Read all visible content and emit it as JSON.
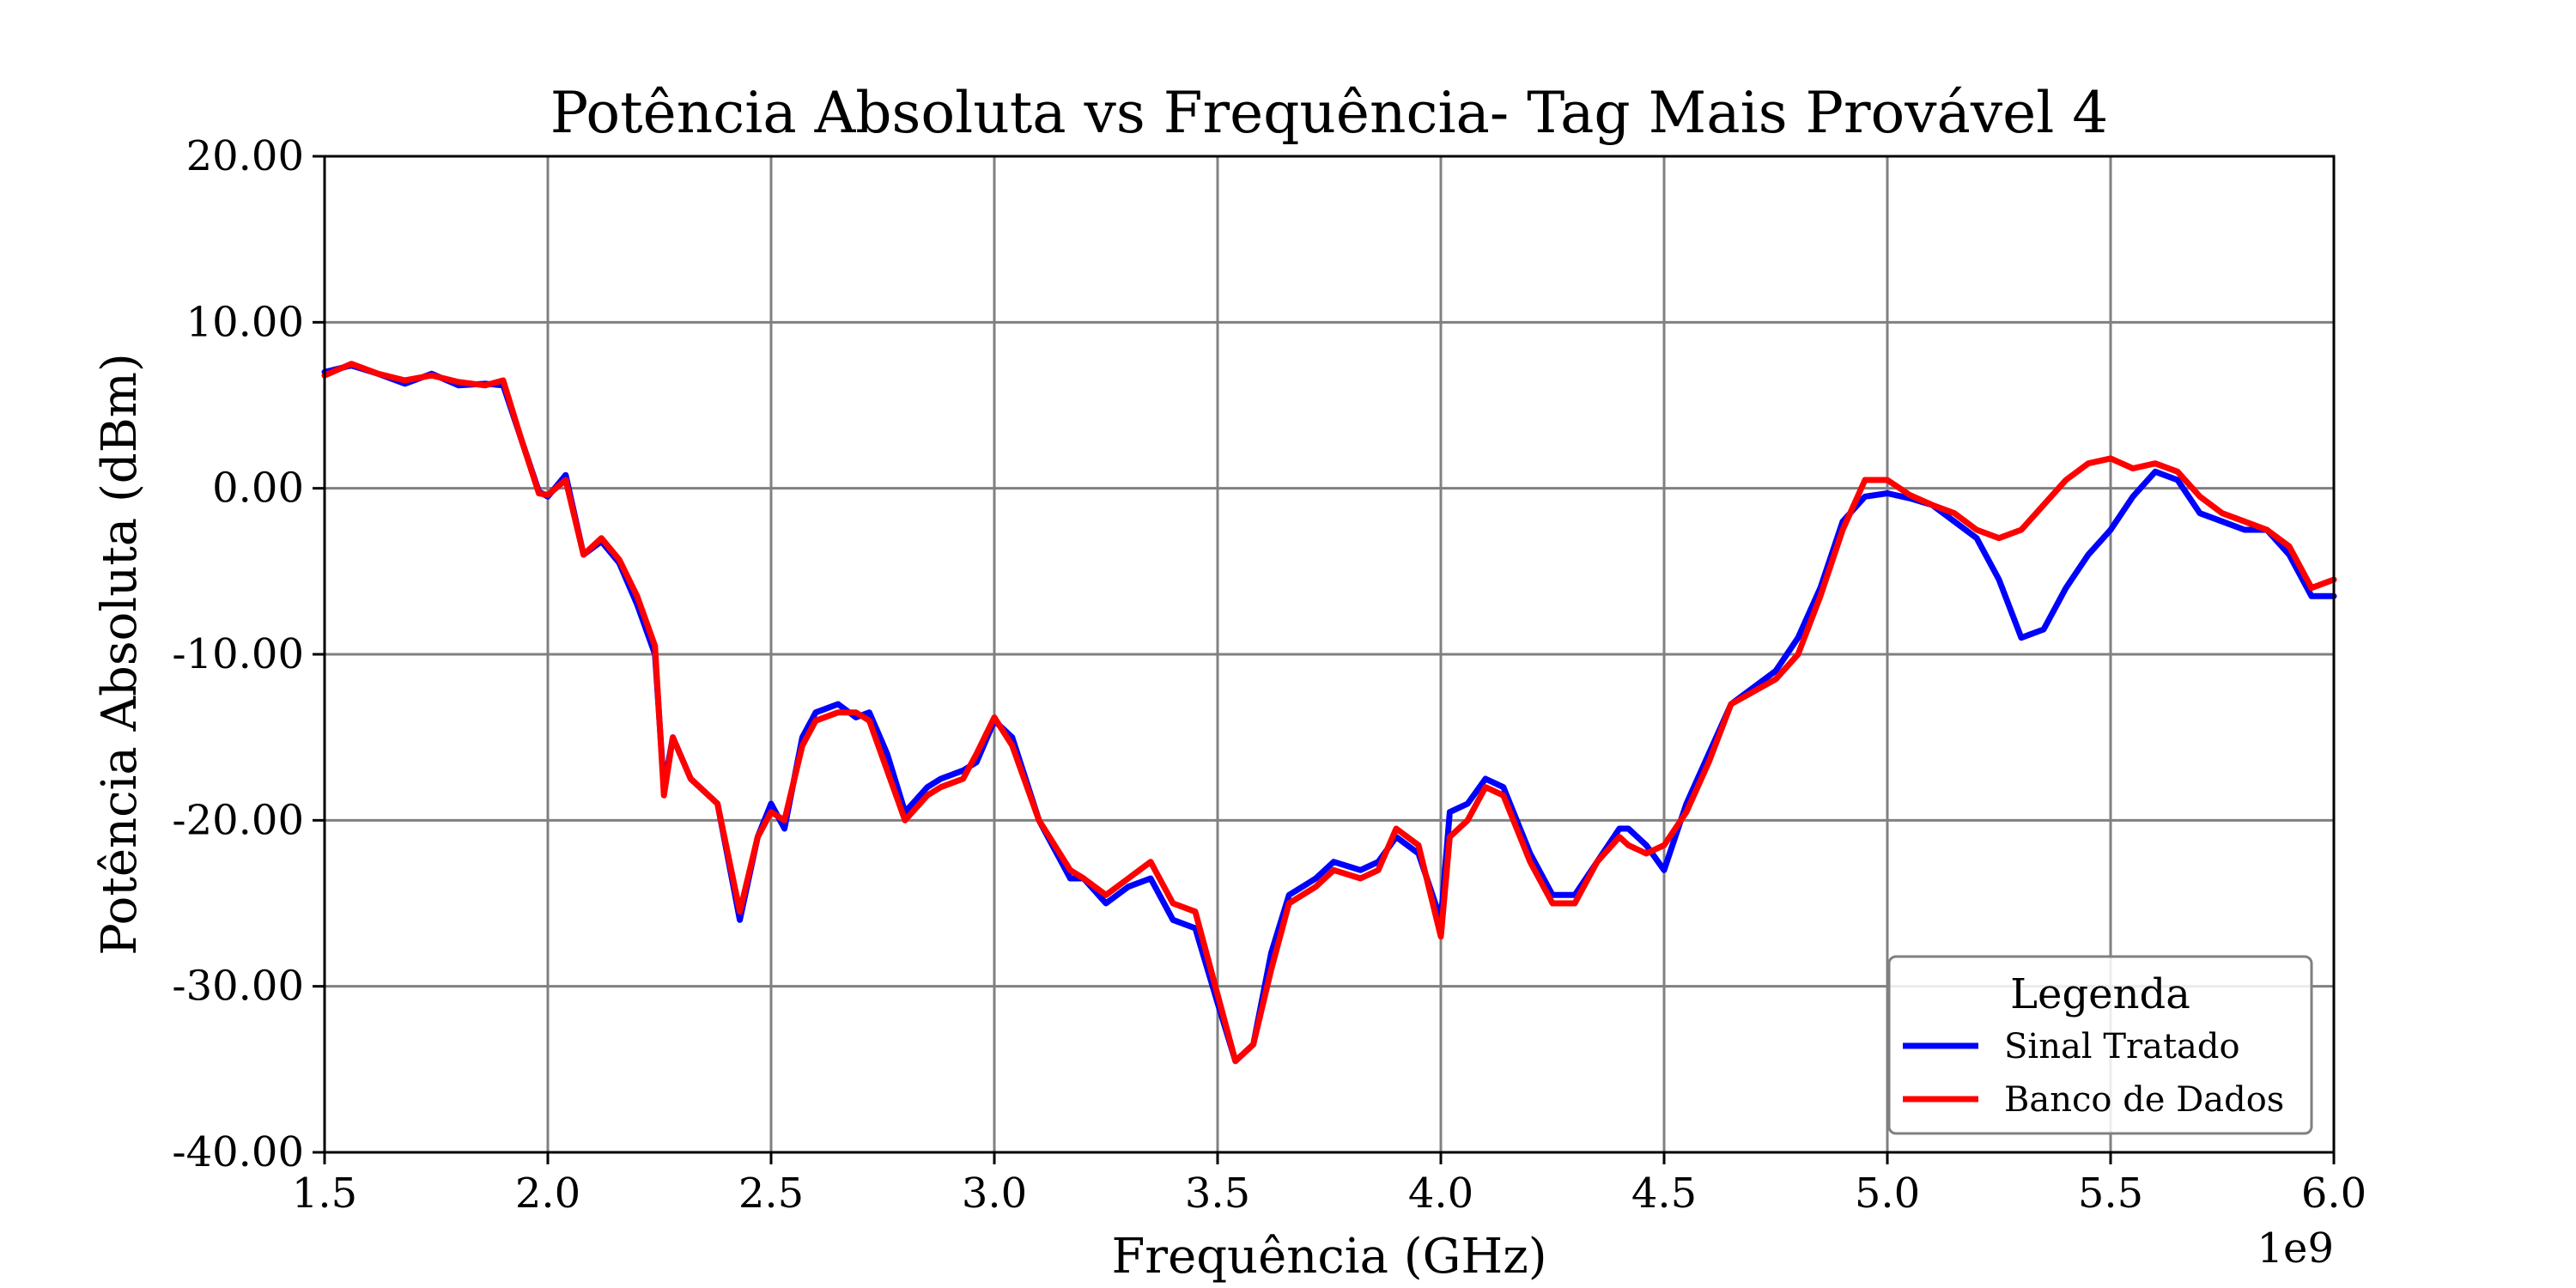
{
  "chart_data": {
    "type": "line",
    "title": "Potência Absoluta vs Frequência- Tag Mais Provável 4",
    "xlabel": "Frequência (GHz)",
    "ylabel": "Potência Absoluta (dBm)",
    "x_offset_text": "1e9",
    "xlim": [
      1.5,
      6.0
    ],
    "ylim": [
      -40,
      20
    ],
    "x_ticks": [
      1.5,
      2.0,
      2.5,
      3.0,
      3.5,
      4.0,
      4.5,
      5.0,
      5.5,
      6.0
    ],
    "x_tick_labels": [
      "1.5",
      "2.0",
      "2.5",
      "3.0",
      "3.5",
      "4.0",
      "4.5",
      "5.0",
      "5.5",
      "6.0"
    ],
    "y_ticks": [
      20,
      10,
      0,
      -10,
      -20,
      -30,
      -40
    ],
    "y_tick_labels": [
      "20.00",
      "10.00",
      "0.00",
      "-10.00",
      "-20.00",
      "-30.00",
      "-40.00"
    ],
    "grid": true,
    "legend": {
      "title": "Legenda",
      "placement": "lower-right"
    },
    "colors": {
      "series_0": "#0000ff",
      "series_1": "#ff0000"
    },
    "series": [
      {
        "name": "Sinal Tratado",
        "x": [
          1.5,
          1.56,
          1.62,
          1.68,
          1.74,
          1.8,
          1.86,
          1.9,
          1.94,
          1.98,
          2.0,
          2.04,
          2.08,
          2.12,
          2.16,
          2.2,
          2.24,
          2.26,
          2.28,
          2.32,
          2.36,
          2.38,
          2.43,
          2.47,
          2.5,
          2.53,
          2.57,
          2.6,
          2.65,
          2.69,
          2.72,
          2.76,
          2.8,
          2.85,
          2.88,
          2.93,
          2.96,
          3.0,
          3.04,
          3.1,
          3.17,
          3.2,
          3.25,
          3.3,
          3.35,
          3.4,
          3.45,
          3.5,
          3.54,
          3.58,
          3.62,
          3.66,
          3.72,
          3.76,
          3.82,
          3.86,
          3.9,
          3.95,
          4.0,
          4.02,
          4.06,
          4.1,
          4.14,
          4.2,
          4.25,
          4.3,
          4.35,
          4.4,
          4.42,
          4.46,
          4.5,
          4.55,
          4.6,
          4.65,
          4.75,
          4.8,
          4.85,
          4.9,
          4.95,
          5.0,
          5.05,
          5.1,
          5.15,
          5.2,
          5.25,
          5.3,
          5.35,
          5.4,
          5.45,
          5.5,
          5.55,
          5.6,
          5.65,
          5.7,
          5.75,
          5.8,
          5.85,
          5.9,
          5.95,
          6.0
        ],
        "values": [
          7.0,
          7.4,
          6.9,
          6.3,
          6.9,
          6.2,
          6.3,
          6.2,
          3.0,
          -0.2,
          -0.5,
          0.8,
          -4.0,
          -3.2,
          -4.5,
          -7.0,
          -10.0,
          -18.0,
          -15.0,
          -17.5,
          -18.5,
          -19.0,
          -26.0,
          -21.0,
          -19.0,
          -20.5,
          -15.0,
          -13.5,
          -13.0,
          -13.8,
          -13.5,
          -16.0,
          -19.5,
          -18.0,
          -17.5,
          -17.0,
          -16.5,
          -14.0,
          -15.0,
          -20.0,
          -23.5,
          -23.5,
          -25.0,
          -24.0,
          -23.5,
          -26.0,
          -26.5,
          -31.0,
          -34.5,
          -33.5,
          -28.0,
          -24.5,
          -23.5,
          -22.5,
          -23.0,
          -22.5,
          -21.0,
          -22.0,
          -26.0,
          -19.5,
          -19.0,
          -17.5,
          -18.0,
          -22.0,
          -24.5,
          -24.5,
          -22.5,
          -20.5,
          -20.5,
          -21.5,
          -23.0,
          -19.0,
          -16.0,
          -13.0,
          -11.0,
          -9.0,
          -6.0,
          -2.0,
          -0.5,
          -0.3,
          -0.6,
          -1.0,
          -2.0,
          -3.0,
          -5.5,
          -9.0,
          -8.5,
          -6.0,
          -4.0,
          -2.5,
          -0.5,
          1.0,
          0.5,
          -1.5,
          -2.0,
          -2.5,
          -2.5,
          -4.0,
          -6.5,
          -6.5
        ]
      },
      {
        "name": "Banco de Dados",
        "x": [
          1.5,
          1.56,
          1.62,
          1.68,
          1.74,
          1.8,
          1.86,
          1.9,
          1.94,
          1.98,
          2.0,
          2.04,
          2.08,
          2.12,
          2.16,
          2.2,
          2.24,
          2.26,
          2.28,
          2.32,
          2.36,
          2.38,
          2.43,
          2.47,
          2.5,
          2.53,
          2.57,
          2.6,
          2.65,
          2.69,
          2.72,
          2.76,
          2.8,
          2.85,
          2.88,
          2.93,
          2.96,
          3.0,
          3.04,
          3.1,
          3.17,
          3.2,
          3.25,
          3.3,
          3.35,
          3.4,
          3.45,
          3.5,
          3.54,
          3.58,
          3.62,
          3.66,
          3.72,
          3.76,
          3.82,
          3.86,
          3.9,
          3.95,
          4.0,
          4.02,
          4.06,
          4.1,
          4.14,
          4.2,
          4.25,
          4.3,
          4.35,
          4.4,
          4.42,
          4.46,
          4.5,
          4.55,
          4.6,
          4.65,
          4.75,
          4.8,
          4.85,
          4.9,
          4.95,
          5.0,
          5.05,
          5.1,
          5.15,
          5.2,
          5.25,
          5.3,
          5.35,
          5.4,
          5.45,
          5.5,
          5.55,
          5.6,
          5.65,
          5.7,
          5.75,
          5.8,
          5.85,
          5.9,
          5.95,
          6.0
        ],
        "values": [
          6.8,
          7.5,
          6.9,
          6.5,
          6.8,
          6.4,
          6.2,
          6.5,
          3.0,
          -0.3,
          -0.4,
          0.5,
          -4.0,
          -3.0,
          -4.3,
          -6.5,
          -9.5,
          -18.5,
          -15.0,
          -17.5,
          -18.5,
          -19.0,
          -25.5,
          -21.0,
          -19.5,
          -20.0,
          -15.5,
          -14.0,
          -13.5,
          -13.5,
          -14.0,
          -17.0,
          -20.0,
          -18.5,
          -18.0,
          -17.5,
          -16.0,
          -13.8,
          -15.5,
          -20.0,
          -23.0,
          -23.5,
          -24.5,
          -23.5,
          -22.5,
          -25.0,
          -25.5,
          -30.5,
          -34.5,
          -33.5,
          -29.0,
          -25.0,
          -24.0,
          -23.0,
          -23.5,
          -23.0,
          -20.5,
          -21.5,
          -27.0,
          -21.0,
          -20.0,
          -18.0,
          -18.5,
          -22.5,
          -25.0,
          -25.0,
          -22.5,
          -21.0,
          -21.5,
          -22.0,
          -21.5,
          -19.5,
          -16.5,
          -13.0,
          -11.5,
          -10.0,
          -6.5,
          -2.5,
          0.5,
          0.5,
          -0.4,
          -1.0,
          -1.5,
          -2.5,
          -3.0,
          -2.5,
          -1.0,
          0.5,
          1.5,
          1.8,
          1.2,
          1.5,
          1.0,
          -0.5,
          -1.5,
          -2.0,
          -2.5,
          -3.5,
          -6.0,
          -5.5
        ]
      }
    ]
  }
}
